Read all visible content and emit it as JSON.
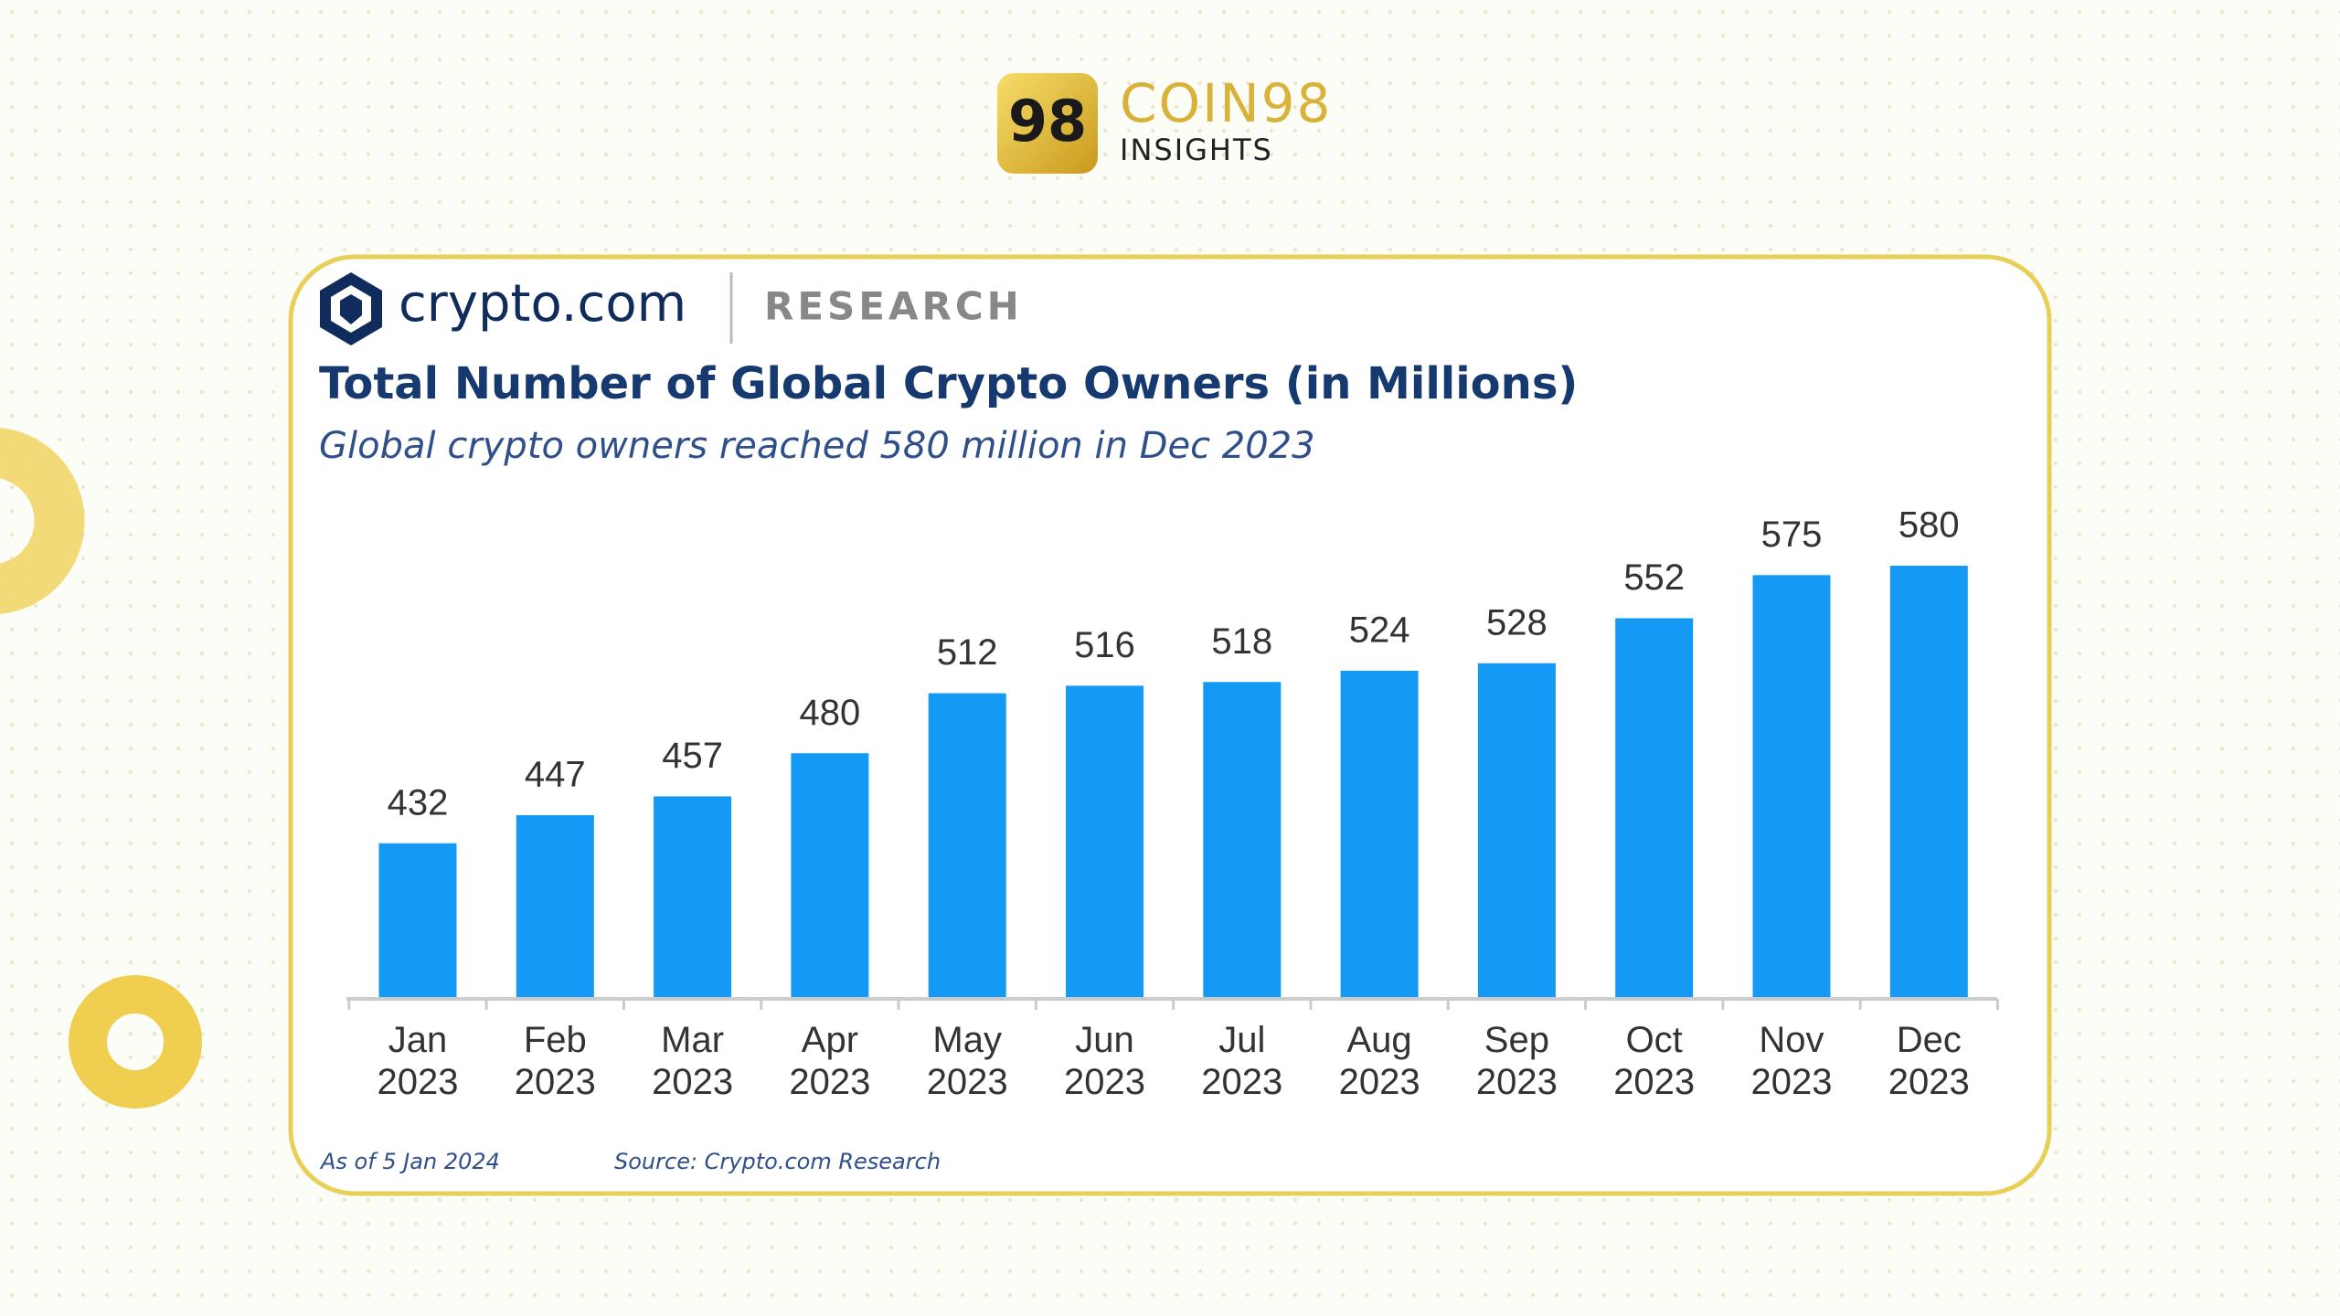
{
  "header": {
    "logo_mark": "98",
    "brand": "COIN98",
    "brand_sub": "INSIGHTS"
  },
  "card": {
    "logo": "crypto.com",
    "section": "RESEARCH"
  },
  "chart_data": {
    "type": "bar",
    "title": "Total Number of Global Crypto Owners (in Millions)",
    "subtitle": "Global crypto owners reached 580 million in Dec 2023",
    "categories": [
      "Jan 2023",
      "Feb 2023",
      "Mar 2023",
      "Apr 2023",
      "May 2023",
      "Jun 2023",
      "Jul 2023",
      "Aug 2023",
      "Sep 2023",
      "Oct 2023",
      "Nov 2023",
      "Dec 2023"
    ],
    "values": [
      432,
      447,
      457,
      480,
      512,
      516,
      518,
      524,
      528,
      552,
      575,
      580
    ],
    "color": "#1499f5",
    "ylim": [
      350,
      600
    ],
    "notes": [
      "As of 5 Jan 2024",
      "Source: Crypto.com Research"
    ]
  }
}
